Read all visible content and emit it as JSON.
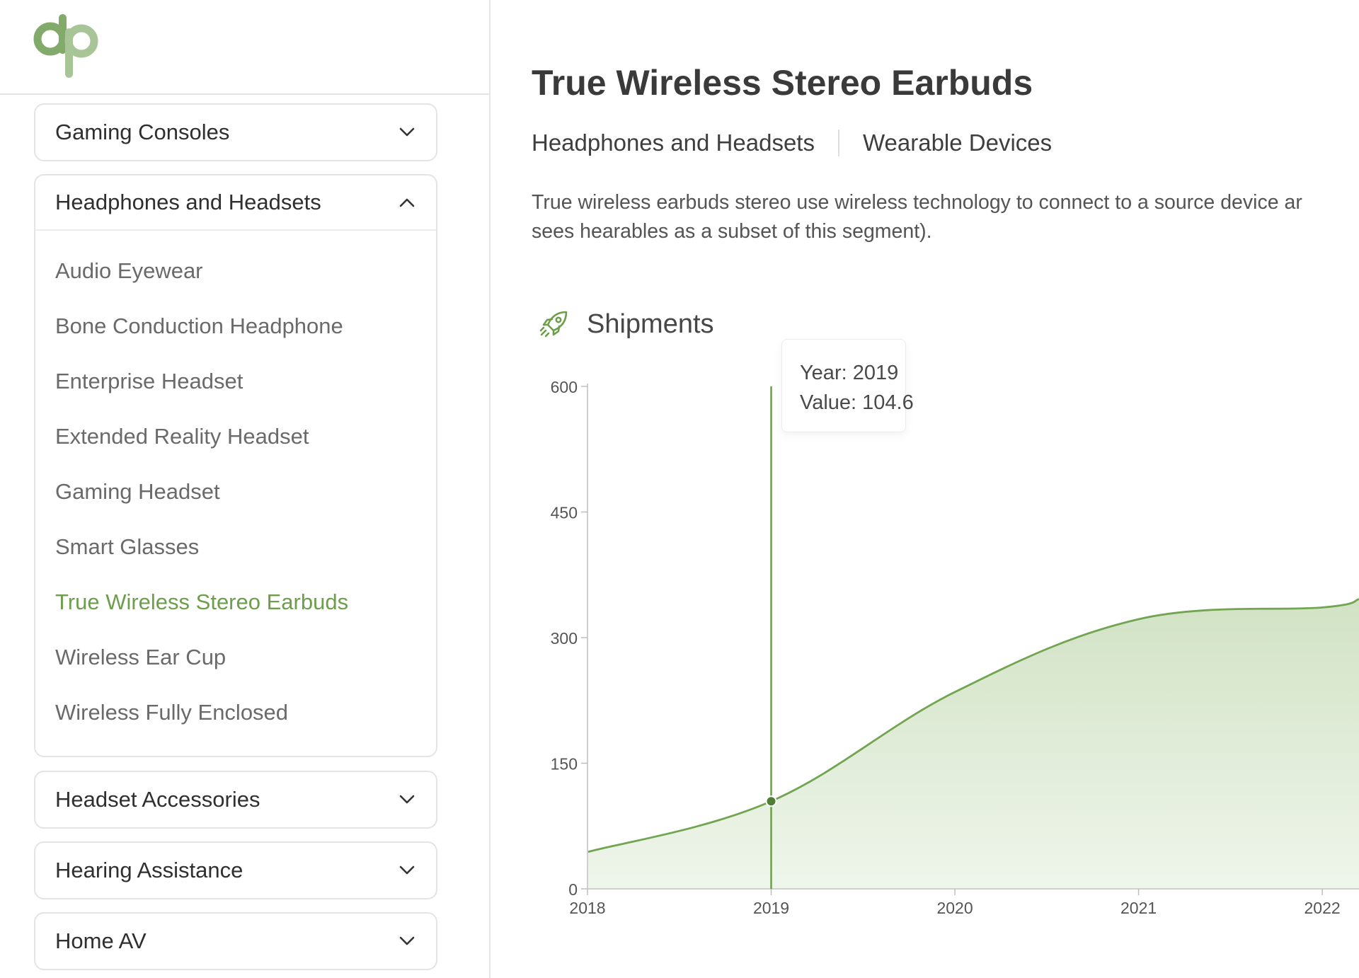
{
  "sidebar": {
    "logo_text": "dp",
    "categories": [
      {
        "label": "Gaming Consoles",
        "expanded": false
      },
      {
        "label": "Headphones and Headsets",
        "expanded": true,
        "items": [
          "Audio Eyewear",
          "Bone Conduction Headphone",
          "Enterprise Headset",
          "Extended Reality Headset",
          "Gaming Headset",
          "Smart Glasses",
          "True Wireless Stereo Earbuds",
          "Wireless Ear Cup",
          "Wireless Fully Enclosed"
        ],
        "active_item": "True Wireless Stereo Earbuds"
      },
      {
        "label": "Headset Accessories",
        "expanded": false
      },
      {
        "label": "Hearing Assistance",
        "expanded": false
      },
      {
        "label": "Home AV",
        "expanded": false
      }
    ]
  },
  "main": {
    "title": "True Wireless Stereo Earbuds",
    "tags": [
      "Headphones and Headsets",
      "Wearable Devices"
    ],
    "description_lines": [
      "True wireless earbuds stereo use wireless technology to connect to a source device ar",
      "sees hearables as a subset of this segment)."
    ],
    "section_title": "Shipments",
    "section_icon": "rocket-icon"
  },
  "tooltip": {
    "year_text": "Year: 2019",
    "value_text": "Value: 104.6"
  },
  "colors": {
    "accent": "#6d9e4c",
    "line": "#72a552",
    "fill": "#dce9d2"
  },
  "chart_data": {
    "type": "area",
    "title": "Shipments",
    "x": [
      2018,
      2019,
      2020,
      2021,
      2022,
      2022.2
    ],
    "values": [
      44,
      104.6,
      235,
      322,
      336,
      346
    ],
    "xlim": [
      2018,
      2022.2
    ],
    "ylim": [
      0,
      600
    ],
    "xticks": [
      2018,
      2019,
      2020,
      2021,
      2022
    ],
    "yticks": [
      0,
      150,
      300,
      450,
      600
    ],
    "highlight": {
      "x": 2019,
      "y": 104.6
    },
    "grid": false,
    "xlabel": "",
    "ylabel": ""
  }
}
